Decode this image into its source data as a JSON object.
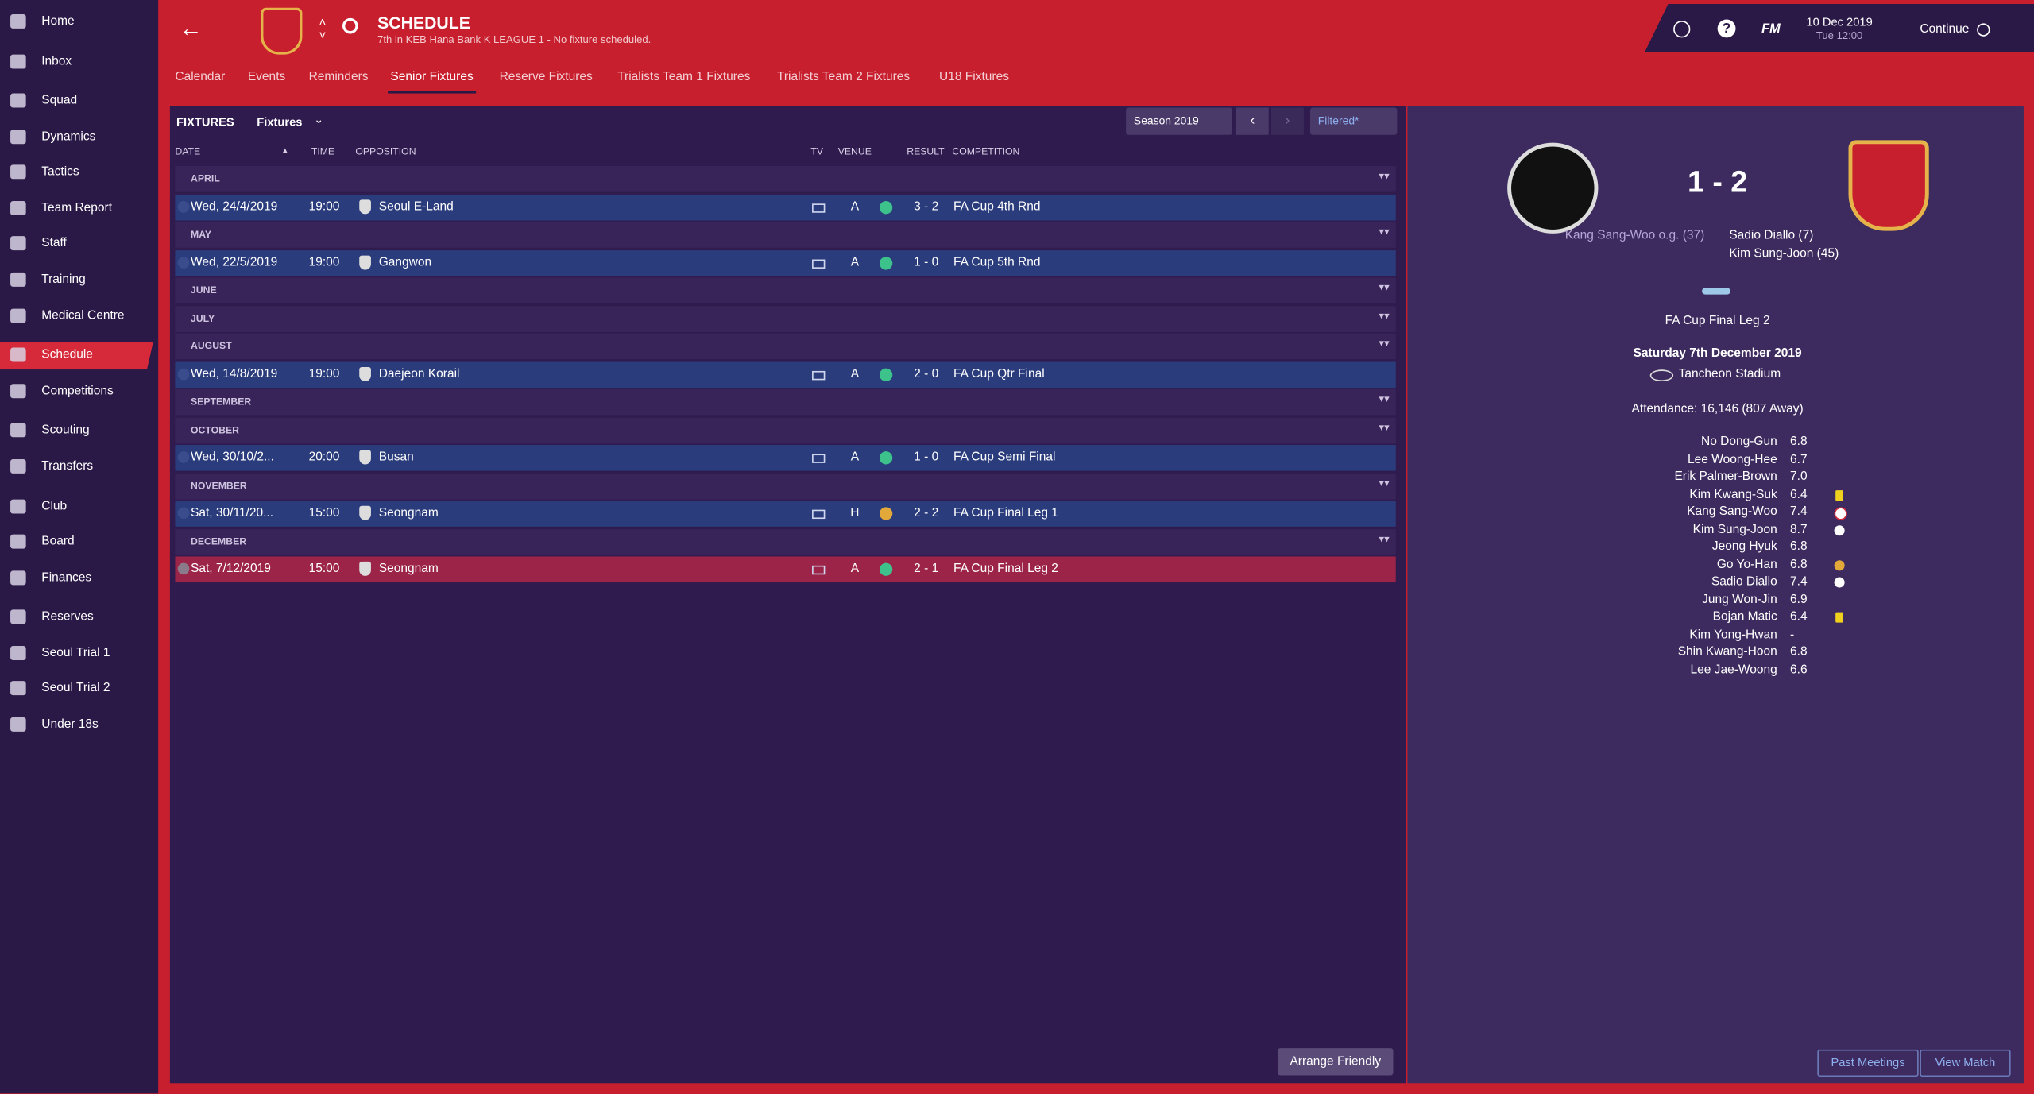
{
  "sidebar": {
    "items": [
      {
        "label": "Home"
      },
      {
        "label": "Inbox"
      },
      {
        "label": "Squad"
      },
      {
        "label": "Dynamics"
      },
      {
        "label": "Tactics"
      },
      {
        "label": "Team Report"
      },
      {
        "label": "Staff"
      },
      {
        "label": "Training"
      },
      {
        "label": "Medical Centre"
      },
      {
        "label": "Schedule",
        "active": true
      },
      {
        "label": "Competitions"
      },
      {
        "label": "Scouting"
      },
      {
        "label": "Transfers"
      },
      {
        "label": "Club"
      },
      {
        "label": "Board"
      },
      {
        "label": "Finances"
      },
      {
        "label": "Reserves"
      },
      {
        "label": "Seoul Trial 1"
      },
      {
        "label": "Seoul Trial 2"
      },
      {
        "label": "Under 18s"
      }
    ]
  },
  "header": {
    "title": "SCHEDULE",
    "subtitle": "7th in KEB Hana Bank K LEAGUE 1 - No fixture scheduled.",
    "brand": "FM",
    "date": "10 Dec 2019",
    "time": "Tue 12:00",
    "continue": "Continue"
  },
  "tabs": [
    {
      "label": "Calendar"
    },
    {
      "label": "Events"
    },
    {
      "label": "Reminders"
    },
    {
      "label": "Senior Fixtures",
      "active": true
    },
    {
      "label": "Reserve Fixtures"
    },
    {
      "label": "Trialists Team 1 Fixtures"
    },
    {
      "label": "Trialists Team 2 Fixtures"
    },
    {
      "label": "U18 Fixtures"
    }
  ],
  "fixtures": {
    "title": "FIXTURES",
    "view": "Fixtures",
    "season": "Season 2019",
    "filter": "Filtered*",
    "columns": [
      "DATE",
      "TIME",
      "OPPOSITION",
      "TV",
      "VENUE",
      "RESULT",
      "COMPETITION"
    ],
    "months": [
      {
        "name": "APRIL",
        "fixtures": [
          {
            "date": "Wed, 24/4/2019",
            "time": "19:00",
            "opposition": "Seoul E-Land",
            "venue": "A",
            "outcome": "win",
            "result": "3 - 2",
            "competition": "FA Cup 4th Rnd"
          }
        ]
      },
      {
        "name": "MAY",
        "fixtures": [
          {
            "date": "Wed, 22/5/2019",
            "time": "19:00",
            "opposition": "Gangwon",
            "venue": "A",
            "outcome": "win",
            "result": "1 - 0",
            "competition": "FA Cup 5th Rnd"
          }
        ]
      },
      {
        "name": "JUNE",
        "fixtures": []
      },
      {
        "name": "JULY",
        "fixtures": []
      },
      {
        "name": "AUGUST",
        "fixtures": [
          {
            "date": "Wed, 14/8/2019",
            "time": "19:00",
            "opposition": "Daejeon Korail",
            "venue": "A",
            "outcome": "win",
            "result": "2 - 0",
            "competition": "FA Cup Qtr Final"
          }
        ]
      },
      {
        "name": "SEPTEMBER",
        "fixtures": []
      },
      {
        "name": "OCTOBER",
        "fixtures": [
          {
            "date": "Wed, 30/10/2...",
            "time": "20:00",
            "opposition": "Busan",
            "venue": "A",
            "outcome": "win",
            "result": "1 - 0",
            "competition": "FA Cup Semi Final"
          }
        ]
      },
      {
        "name": "NOVEMBER",
        "fixtures": [
          {
            "date": "Sat, 30/11/20...",
            "time": "15:00",
            "opposition": "Seongnam",
            "venue": "H",
            "outcome": "draw",
            "result": "2 - 2",
            "competition": "FA Cup Final Leg 1"
          }
        ]
      },
      {
        "name": "DECEMBER",
        "fixtures": [
          {
            "date": "Sat, 7/12/2019",
            "time": "15:00",
            "opposition": "Seongnam",
            "venue": "A",
            "outcome": "win",
            "result": "2 - 1",
            "competition": "FA Cup Final Leg 2",
            "selected": true
          }
        ]
      }
    ],
    "arrange": "Arrange Friendly"
  },
  "match": {
    "score": "1 - 2",
    "home_scorers": [
      "Kang Sang-Woo o.g. (37)"
    ],
    "away_scorers": [
      "Sadio Diallo (7)",
      "Kim Sung-Joon (45)"
    ],
    "competition": "FA Cup Final Leg 2",
    "date": "Saturday 7th December 2019",
    "stadium": "Tancheon Stadium",
    "attendance": "Attendance: 16,146 (807 Away)",
    "players": [
      {
        "name": "No Dong-Gun",
        "rating": "6.8"
      },
      {
        "name": "Lee Woong-Hee",
        "rating": "6.7"
      },
      {
        "name": "Erik Palmer-Brown",
        "rating": "7.0"
      },
      {
        "name": "Kim Kwang-Suk",
        "rating": "6.4",
        "icon": "yellow-card"
      },
      {
        "name": "Kang Sang-Woo",
        "rating": "7.4",
        "icon": "own-goal"
      },
      {
        "name": "Kim Sung-Joon",
        "rating": "8.7",
        "icon": "goal"
      },
      {
        "name": "Jeong Hyuk",
        "rating": "6.8"
      },
      {
        "name": "Go Yo-Han",
        "rating": "6.8",
        "icon": "assist"
      },
      {
        "name": "Sadio Diallo",
        "rating": "7.4",
        "icon": "goal"
      },
      {
        "name": "Jung Won-Jin",
        "rating": "6.9"
      },
      {
        "name": "Bojan Matic",
        "rating": "6.4",
        "icon": "yellow-card"
      },
      {
        "name": "Kim Yong-Hwan",
        "rating": "-"
      },
      {
        "name": "Shin Kwang-Hoon",
        "rating": "6.8"
      },
      {
        "name": "Lee Jae-Woong",
        "rating": "6.6"
      }
    ],
    "buttons": [
      "Past Meetings",
      "View Match"
    ]
  }
}
